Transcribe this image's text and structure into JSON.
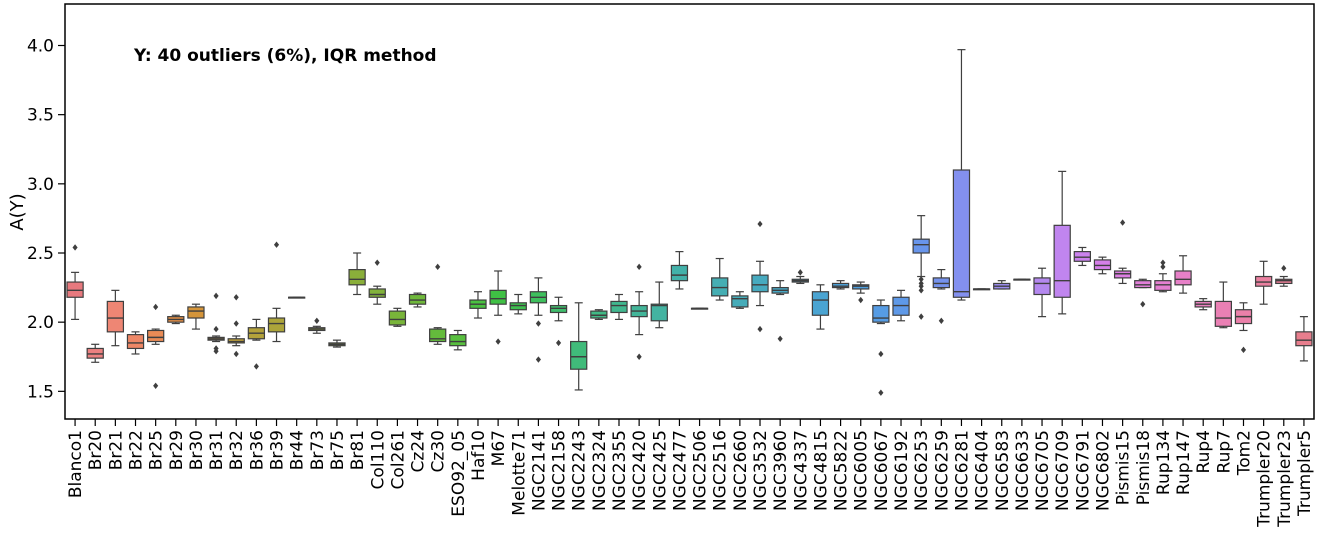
{
  "chart_data": {
    "type": "box",
    "title": "",
    "annotation": "Y: 40 outliers (6%), IQR method",
    "xlabel": "",
    "ylabel": "A(Y)",
    "ylim": [
      1.3,
      4.3
    ],
    "yticks": [
      1.5,
      2.0,
      2.5,
      3.0,
      3.5,
      4.0
    ],
    "ytick_labels": [
      "1.5",
      "2.0",
      "2.5",
      "3.0",
      "3.5",
      "4.0"
    ],
    "grid": false,
    "legend": "none",
    "box_fields": [
      "whisker_low",
      "q1",
      "median",
      "q3",
      "whisker_high"
    ],
    "categories": [
      "Blanco1",
      "Br20",
      "Br21",
      "Br22",
      "Br25",
      "Br29",
      "Br30",
      "Br31",
      "Br32",
      "Br36",
      "Br39",
      "Br44",
      "Br73",
      "Br75",
      "Br81",
      "Col110",
      "Col261",
      "Cz24",
      "Cz30",
      "ESO92_05",
      "Haf10",
      "M67",
      "Melotte71",
      "NGC2141",
      "NGC2158",
      "NGC2243",
      "NGC2324",
      "NGC2355",
      "NGC2420",
      "NGC2425",
      "NGC2477",
      "NGC2506",
      "NGC2516",
      "NGC2660",
      "NGC3532",
      "NGC3960",
      "NGC4337",
      "NGC4815",
      "NGC5822",
      "NGC6005",
      "NGC6067",
      "NGC6192",
      "NGC6253",
      "NGC6259",
      "NGC6281",
      "NGC6404",
      "NGC6583",
      "NGC6633",
      "NGC6705",
      "NGC6709",
      "NGC6791",
      "NGC6802",
      "Pismis15",
      "Pismis18",
      "Rup134",
      "Rup147",
      "Rup4",
      "Rup7",
      "Tom2",
      "Trumpler20",
      "Trumpler23",
      "Trumpler5"
    ],
    "boxes": [
      [
        2.02,
        2.18,
        2.23,
        2.29,
        2.36
      ],
      [
        1.71,
        1.74,
        1.77,
        1.81,
        1.84
      ],
      [
        1.83,
        1.93,
        2.03,
        2.15,
        2.23
      ],
      [
        1.77,
        1.81,
        1.85,
        1.91,
        1.93
      ],
      [
        1.84,
        1.86,
        1.89,
        1.94,
        1.95
      ],
      [
        1.99,
        2.0,
        2.02,
        2.04,
        2.05
      ],
      [
        1.95,
        2.03,
        2.08,
        2.11,
        2.13
      ],
      [
        1.86,
        1.87,
        1.88,
        1.89,
        1.9
      ],
      [
        1.83,
        1.85,
        1.86,
        1.88,
        1.9
      ],
      [
        1.87,
        1.88,
        1.92,
        1.96,
        2.02
      ],
      [
        1.86,
        1.93,
        1.99,
        2.03,
        2.1
      ],
      [
        2.18,
        2.18,
        2.18,
        2.18,
        2.18
      ],
      [
        1.92,
        1.94,
        1.95,
        1.96,
        1.97
      ],
      [
        1.82,
        1.83,
        1.84,
        1.85,
        1.87
      ],
      [
        2.2,
        2.27,
        2.31,
        2.38,
        2.5
      ],
      [
        2.13,
        2.18,
        2.2,
        2.24,
        2.26
      ],
      [
        1.97,
        1.98,
        2.02,
        2.08,
        2.1
      ],
      [
        2.11,
        2.13,
        2.16,
        2.2,
        2.21
      ],
      [
        1.84,
        1.86,
        1.88,
        1.95,
        1.96
      ],
      [
        1.8,
        1.83,
        1.86,
        1.91,
        1.94
      ],
      [
        2.03,
        2.1,
        2.13,
        2.16,
        2.22
      ],
      [
        2.05,
        2.13,
        2.17,
        2.23,
        2.37
      ],
      [
        2.06,
        2.09,
        2.12,
        2.14,
        2.2
      ],
      [
        2.05,
        2.14,
        2.18,
        2.22,
        2.32
      ],
      [
        2.01,
        2.07,
        2.1,
        2.12,
        2.18
      ],
      [
        1.51,
        1.66,
        1.75,
        1.86,
        2.14
      ],
      [
        2.02,
        2.03,
        2.05,
        2.08,
        2.09
      ],
      [
        2.02,
        2.07,
        2.12,
        2.15,
        2.2
      ],
      [
        1.91,
        2.04,
        2.08,
        2.12,
        2.22
      ],
      [
        1.96,
        2.01,
        2.12,
        2.13,
        2.29
      ],
      [
        2.24,
        2.3,
        2.34,
        2.41,
        2.51
      ],
      [
        2.1,
        2.1,
        2.1,
        2.1,
        2.1
      ],
      [
        2.16,
        2.19,
        2.25,
        2.32,
        2.46
      ],
      [
        2.1,
        2.11,
        2.17,
        2.19,
        2.22
      ],
      [
        2.12,
        2.22,
        2.27,
        2.34,
        2.44
      ],
      [
        2.2,
        2.21,
        2.23,
        2.25,
        2.3
      ],
      [
        2.28,
        2.29,
        2.3,
        2.31,
        2.33
      ],
      [
        1.95,
        2.05,
        2.16,
        2.22,
        2.27
      ],
      [
        2.24,
        2.25,
        2.26,
        2.28,
        2.3
      ],
      [
        2.21,
        2.24,
        2.26,
        2.27,
        2.29
      ],
      [
        1.99,
        2.0,
        2.03,
        2.12,
        2.16
      ],
      [
        2.01,
        2.05,
        2.12,
        2.18,
        2.23
      ],
      [
        2.33,
        2.5,
        2.56,
        2.6,
        2.77
      ],
      [
        2.24,
        2.25,
        2.28,
        2.32,
        2.38
      ],
      [
        2.16,
        2.18,
        2.22,
        3.1,
        3.97
      ],
      [
        2.24,
        2.24,
        2.24,
        2.24,
        2.24
      ],
      [
        2.24,
        2.24,
        2.26,
        2.28,
        2.3
      ],
      [
        2.31,
        2.31,
        2.31,
        2.31,
        2.31
      ],
      [
        2.04,
        2.2,
        2.28,
        2.32,
        2.39
      ],
      [
        2.06,
        2.18,
        2.3,
        2.7,
        3.09
      ],
      [
        2.41,
        2.44,
        2.47,
        2.51,
        2.54
      ],
      [
        2.35,
        2.38,
        2.41,
        2.45,
        2.47
      ],
      [
        2.28,
        2.32,
        2.35,
        2.37,
        2.39
      ],
      [
        2.25,
        2.25,
        2.27,
        2.3,
        2.31
      ],
      [
        2.22,
        2.23,
        2.27,
        2.3,
        2.35
      ],
      [
        2.21,
        2.27,
        2.31,
        2.37,
        2.48
      ],
      [
        2.09,
        2.11,
        2.13,
        2.15,
        2.17
      ],
      [
        1.96,
        1.97,
        2.03,
        2.15,
        2.29
      ],
      [
        1.94,
        1.99,
        2.04,
        2.09,
        2.14
      ],
      [
        2.13,
        2.26,
        2.29,
        2.33,
        2.44
      ],
      [
        2.26,
        2.28,
        2.3,
        2.31,
        2.33
      ],
      [
        1.72,
        1.83,
        1.87,
        1.93,
        2.04
      ]
    ],
    "outliers": [
      [
        2.54
      ],
      [],
      [],
      [],
      [
        2.11,
        1.54
      ],
      [],
      [],
      [
        2.19,
        1.95,
        1.81,
        1.79
      ],
      [
        2.18,
        1.99,
        1.77
      ],
      [
        1.68
      ],
      [
        2.56
      ],
      [],
      [
        2.01
      ],
      [],
      [],
      [
        2.43
      ],
      [],
      [],
      [
        2.4
      ],
      [],
      [],
      [
        1.86
      ],
      [],
      [
        1.99,
        1.73
      ],
      [
        1.85
      ],
      [],
      [],
      [],
      [
        2.4,
        1.75
      ],
      [],
      [],
      [],
      [],
      [],
      [
        2.71,
        1.95
      ],
      [
        1.88
      ],
      [
        2.36
      ],
      [],
      [],
      [
        2.16
      ],
      [
        1.77,
        1.49
      ],
      [],
      [
        2.31,
        2.28,
        2.26,
        2.23,
        2.04
      ],
      [
        2.01
      ],
      [],
      [],
      [],
      [],
      [],
      [],
      [],
      [],
      [
        2.72
      ],
      [
        2.13
      ],
      [
        2.43,
        2.4
      ],
      [],
      [],
      [],
      [
        1.8
      ],
      [],
      [
        2.39
      ],
      []
    ],
    "colors": [
      "#e7797e",
      "#ec8181",
      "#ee8674",
      "#ee8766",
      "#e98b56",
      "#e28f47",
      "#d5953a",
      "#c89b3a",
      "#bd9f3b",
      "#b3a23b",
      "#aca43a",
      "#a4a73b",
      "#9caa3a",
      "#92ac3a",
      "#8aaf3a",
      "#82b33b",
      "#79b53a",
      "#6fb83b",
      "#64bb3c",
      "#58bf3e",
      "#4ac140",
      "#3fc044",
      "#3ebf4f",
      "#3ec05d",
      "#3fbd6c",
      "#40bb7a",
      "#41b985",
      "#41b78f",
      "#42b599",
      "#43b3a1",
      "#43b1a9",
      "#44b0ae",
      "#45aeb3",
      "#46acb9",
      "#47aabf",
      "#48a8c5",
      "#49a6cb",
      "#4aa4d2",
      "#4ca2d9",
      "#4f9fdf",
      "#569ce4",
      "#5e99e8",
      "#6895eb",
      "#7592ec",
      "#8390ef",
      "#9090ef",
      "#9c8def",
      "#a88aef",
      "#b488ef",
      "#c085ef",
      "#cb82ee",
      "#d57fe8",
      "#dc7ee2",
      "#e17fd9",
      "#e47fd1",
      "#e780c8",
      "#e980bf",
      "#ea80b4",
      "#eb80a9",
      "#eb80a0",
      "#ea7f96",
      "#e87e8d"
    ]
  }
}
